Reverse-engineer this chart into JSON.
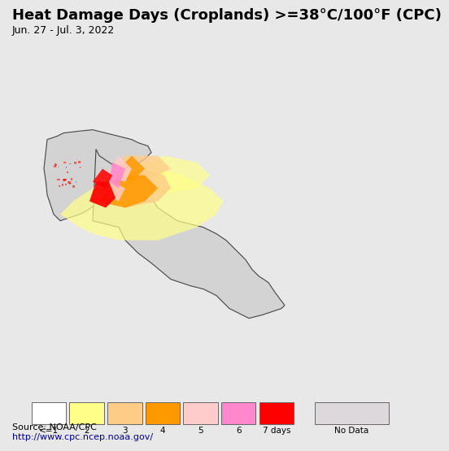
{
  "title": "Heat Damage Days (Croplands) >=38°C/100°F (CPC)",
  "subtitle": "Jun. 27 - Jul. 3, 2022",
  "source_line1": "Source: NOAA/CPC",
  "source_line2": "http://www.cpc.ncep.noaa.gov/",
  "legend_labels": [
    "<=1",
    "2",
    "3",
    "4",
    "5",
    "6",
    "7 days",
    "No Data"
  ],
  "legend_colors": [
    "#ffffff",
    "#ffff88",
    "#ffcc88",
    "#ff9900",
    "#ffcccc",
    "#ff88cc",
    "#ff0000",
    "#dcd8dc"
  ],
  "ocean_color": "#aae8f0",
  "land_color": "#d3d3d3",
  "fig_bg_color": "#e8e8e8",
  "title_fontsize": 13,
  "subtitle_fontsize": 9,
  "source_fontsize": 8,
  "map_extent_lon": [
    55,
    115
  ],
  "map_extent_lat": [
    5,
    47
  ]
}
